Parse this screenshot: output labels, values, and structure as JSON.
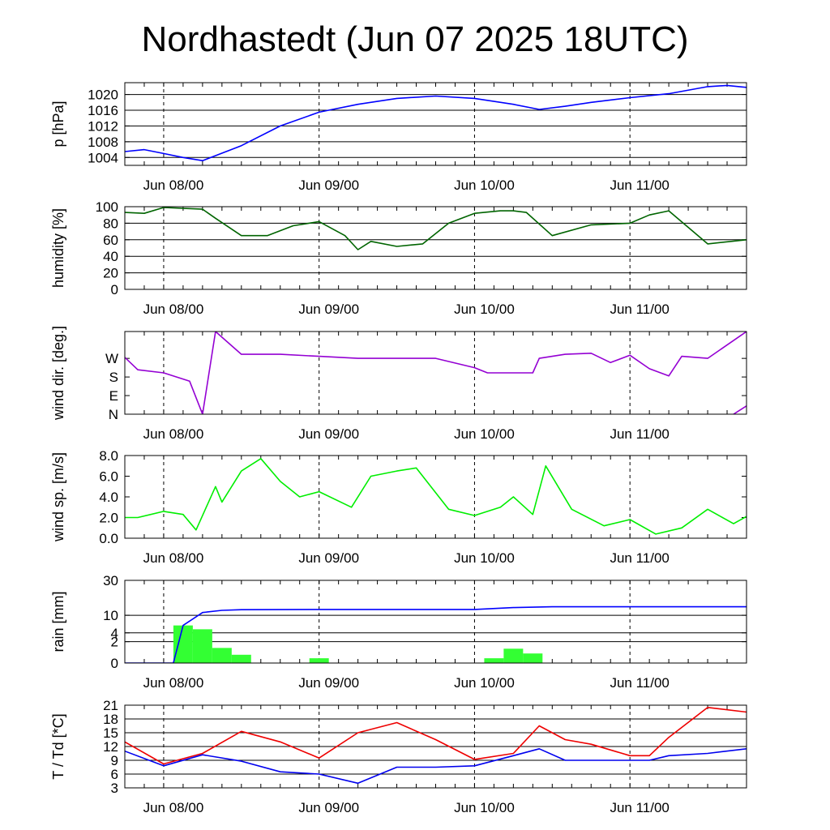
{
  "title": "Nordhastedt (Jun 07 2025 18UTC)",
  "x_axis": {
    "start": "2025-06-07 18:00",
    "end": "2025-06-11 18:00",
    "ticks": [
      {
        "time": "2025-06-08 00:00",
        "label": "Jun 08/00"
      },
      {
        "time": "2025-06-09 00:00",
        "label": "Jun 09/00"
      },
      {
        "time": "2025-06-10 00:00",
        "label": "Jun 10/00"
      },
      {
        "time": "2025-06-11 00:00",
        "label": "Jun 11/00"
      }
    ]
  },
  "chart_data": [
    {
      "id": "pressure",
      "type": "line",
      "ylabel": "p [hPa]",
      "ylim": [
        1002,
        1023
      ],
      "yticks": [
        1004,
        1008,
        1012,
        1016,
        1020
      ],
      "ytick_labels": [
        "1004",
        "1008",
        "1012",
        "1016",
        "1020"
      ],
      "grid": true,
      "series": [
        {
          "color": "#0000ff",
          "x": [
            "2025-06-07 18:00",
            "2025-06-07 21:00",
            "2025-06-08 00:00",
            "2025-06-08 03:00",
            "2025-06-08 06:00",
            "2025-06-08 12:00",
            "2025-06-08 18:00",
            "2025-06-09 00:00",
            "2025-06-09 06:00",
            "2025-06-09 12:00",
            "2025-06-09 18:00",
            "2025-06-10 00:00",
            "2025-06-10 06:00",
            "2025-06-10 10:00",
            "2025-06-10 14:00",
            "2025-06-10 18:00",
            "2025-06-11 00:00",
            "2025-06-11 06:00",
            "2025-06-11 12:00",
            "2025-06-11 15:00",
            "2025-06-11 18:00"
          ],
          "y": [
            1005.5,
            1006.0,
            1005.0,
            1004.0,
            1003.2,
            1007.0,
            1012.0,
            1015.5,
            1017.5,
            1019.0,
            1019.6,
            1019.0,
            1017.5,
            1016.2,
            1017.0,
            1018.0,
            1019.2,
            1020.2,
            1022.0,
            1022.3,
            1021.8
          ]
        }
      ]
    },
    {
      "id": "humidity",
      "type": "line",
      "ylabel": "humidity [%]",
      "ylim": [
        0,
        100
      ],
      "yticks": [
        0,
        20,
        40,
        60,
        80,
        100
      ],
      "ytick_labels": [
        "0",
        "20",
        "40",
        "60",
        "80",
        "100"
      ],
      "grid": true,
      "series": [
        {
          "color": "#006400",
          "x": [
            "2025-06-07 18:00",
            "2025-06-07 21:00",
            "2025-06-08 00:00",
            "2025-06-08 06:00",
            "2025-06-08 08:00",
            "2025-06-08 12:00",
            "2025-06-08 16:00",
            "2025-06-08 20:00",
            "2025-06-09 00:00",
            "2025-06-09 04:00",
            "2025-06-09 06:00",
            "2025-06-09 08:00",
            "2025-06-09 12:00",
            "2025-06-09 16:00",
            "2025-06-09 20:00",
            "2025-06-10 00:00",
            "2025-06-10 04:00",
            "2025-06-10 06:00",
            "2025-06-10 08:00",
            "2025-06-10 12:00",
            "2025-06-10 18:00",
            "2025-06-11 00:00",
            "2025-06-11 03:00",
            "2025-06-11 06:00",
            "2025-06-11 12:00",
            "2025-06-11 18:00"
          ],
          "y": [
            93,
            92,
            99,
            97,
            86,
            65,
            65,
            77,
            82,
            65,
            48,
            58,
            52,
            55,
            80,
            92,
            95,
            95,
            93,
            65,
            78,
            80,
            90,
            95,
            55,
            60
          ]
        }
      ]
    },
    {
      "id": "wind_direction",
      "type": "line",
      "ylabel": "wind dir. [deg.]",
      "ylim": [
        0,
        400
      ],
      "yticks": [
        0,
        90,
        180,
        270
      ],
      "ytick_labels": [
        "N",
        "E",
        "S",
        "W"
      ],
      "grid": false,
      "series": [
        {
          "color": "#9400d3",
          "x": [
            "2025-06-07 18:00",
            "2025-06-07 20:00",
            "2025-06-08 00:00",
            "2025-06-08 04:00",
            "2025-06-08 06:00",
            "2025-06-08 08:00",
            "2025-06-08 12:00",
            "2025-06-08 18:00",
            "2025-06-09 00:00",
            "2025-06-09 06:00",
            "2025-06-09 12:00",
            "2025-06-09 18:00",
            "2025-06-10 00:00",
            "2025-06-10 02:00",
            "2025-06-10 06:00",
            "2025-06-10 09:00",
            "2025-06-10 10:00",
            "2025-06-10 14:00",
            "2025-06-10 18:00",
            "2025-06-10 21:00",
            "2025-06-11 00:00",
            "2025-06-11 03:00",
            "2025-06-11 06:00",
            "2025-06-11 08:00",
            "2025-06-11 12:00",
            "2025-06-11 18:00"
          ],
          "y": [
            275,
            215,
            200,
            160,
            0,
            400,
            290,
            290,
            280,
            270,
            270,
            270,
            225,
            200,
            200,
            200,
            270,
            290,
            295,
            250,
            285,
            220,
            185,
            280,
            270,
            400
          ]
        },
        {
          "color": "#9400d3",
          "x": [
            "2025-06-11 16:00",
            "2025-06-11 18:00"
          ],
          "y": [
            0,
            40
          ]
        }
      ]
    },
    {
      "id": "wind_speed",
      "type": "line",
      "ylabel": "wind sp. [m/s]",
      "ylim": [
        0,
        8.0
      ],
      "yticks": [
        0,
        2,
        4,
        6,
        8
      ],
      "ytick_labels": [
        "0.0",
        "2.0",
        "4.0",
        "6.0",
        "8.0"
      ],
      "grid": false,
      "series": [
        {
          "color": "#00ee00",
          "x": [
            "2025-06-07 18:00",
            "2025-06-07 20:00",
            "2025-06-08 00:00",
            "2025-06-08 03:00",
            "2025-06-08 05:00",
            "2025-06-08 08:00",
            "2025-06-08 09:00",
            "2025-06-08 12:00",
            "2025-06-08 15:00",
            "2025-06-08 18:00",
            "2025-06-08 21:00",
            "2025-06-09 00:00",
            "2025-06-09 05:00",
            "2025-06-09 08:00",
            "2025-06-09 12:00",
            "2025-06-09 15:00",
            "2025-06-09 20:00",
            "2025-06-10 00:00",
            "2025-06-10 04:00",
            "2025-06-10 06:00",
            "2025-06-10 09:00",
            "2025-06-10 11:00",
            "2025-06-10 15:00",
            "2025-06-10 20:00",
            "2025-06-11 00:00",
            "2025-06-11 04:00",
            "2025-06-11 08:00",
            "2025-06-11 12:00",
            "2025-06-11 16:00",
            "2025-06-11 18:00"
          ],
          "y": [
            2.0,
            2.0,
            2.6,
            2.3,
            0.8,
            5.0,
            3.5,
            6.5,
            7.7,
            5.5,
            4.0,
            4.5,
            3.0,
            6.0,
            6.5,
            6.8,
            2.8,
            2.2,
            3.0,
            4.0,
            2.3,
            7.0,
            2.8,
            1.2,
            1.8,
            0.4,
            1.0,
            2.8,
            1.4,
            2.1
          ]
        }
      ]
    },
    {
      "id": "rain",
      "type": "bar",
      "ylabel": "rain [mm]",
      "scale": "sqrt",
      "ylim": [
        0,
        30
      ],
      "yticks": [
        0,
        2,
        4,
        10,
        30
      ],
      "ytick_labels": [
        "0",
        "2",
        "4",
        "10",
        "30"
      ],
      "grid": true,
      "bars": {
        "color": "#33ff33",
        "width_hours": 3,
        "x": [
          "2025-06-08 03:00",
          "2025-06-08 06:00",
          "2025-06-08 09:00",
          "2025-06-08 12:00",
          "2025-06-09 00:00",
          "2025-06-10 03:00",
          "2025-06-10 06:00",
          "2025-06-10 09:00"
        ],
        "y": [
          6.2,
          5.0,
          1.0,
          0.3,
          0.1,
          0.1,
          0.9,
          0.4
        ]
      },
      "series": [
        {
          "color": "#0000ff",
          "x": [
            "2025-06-07 18:00",
            "2025-06-08 01:30",
            "2025-06-08 03:00",
            "2025-06-08 06:00",
            "2025-06-08 09:00",
            "2025-06-08 12:00",
            "2025-06-09 00:00",
            "2025-06-10 00:00",
            "2025-06-10 06:00",
            "2025-06-10 12:00",
            "2025-06-11 18:00"
          ],
          "y": [
            0,
            0,
            6.2,
            11.2,
            12.2,
            12.5,
            12.6,
            12.6,
            13.5,
            13.9,
            13.9
          ]
        }
      ]
    },
    {
      "id": "temperature",
      "type": "line",
      "ylabel": "T / Td [*C]",
      "ylim": [
        3,
        21
      ],
      "yticks": [
        3,
        6,
        9,
        12,
        15,
        18,
        21
      ],
      "ytick_labels": [
        "3",
        "6",
        "9",
        "12",
        "15",
        "18",
        "21"
      ],
      "grid": true,
      "series": [
        {
          "color": "#ee0000",
          "x": [
            "2025-06-07 18:00",
            "2025-06-08 00:00",
            "2025-06-08 06:00",
            "2025-06-08 12:00",
            "2025-06-08 18:00",
            "2025-06-09 00:00",
            "2025-06-09 06:00",
            "2025-06-09 12:00",
            "2025-06-09 18:00",
            "2025-06-10 00:00",
            "2025-06-10 06:00",
            "2025-06-10 10:00",
            "2025-06-10 14:00",
            "2025-06-10 18:00",
            "2025-06-11 00:00",
            "2025-06-11 03:00",
            "2025-06-11 06:00",
            "2025-06-11 12:00",
            "2025-06-11 18:00"
          ],
          "y": [
            13,
            8.2,
            10.5,
            15.3,
            13,
            9.5,
            15,
            17.2,
            13.5,
            9.2,
            10.5,
            16.5,
            13.5,
            12.5,
            10,
            10,
            14,
            20.5,
            19.5
          ]
        },
        {
          "color": "#0000ee",
          "x": [
            "2025-06-07 18:00",
            "2025-06-08 00:00",
            "2025-06-08 06:00",
            "2025-06-08 12:00",
            "2025-06-08 18:00",
            "2025-06-09 00:00",
            "2025-06-09 06:00",
            "2025-06-09 12:00",
            "2025-06-09 18:00",
            "2025-06-10 00:00",
            "2025-06-10 06:00",
            "2025-06-10 10:00",
            "2025-06-10 14:00",
            "2025-06-10 18:00",
            "2025-06-11 00:00",
            "2025-06-11 03:00",
            "2025-06-11 06:00",
            "2025-06-11 12:00",
            "2025-06-11 18:00"
          ],
          "y": [
            11,
            7.8,
            10.2,
            8.8,
            6.5,
            6,
            4,
            7.5,
            7.5,
            7.8,
            10,
            11.5,
            9,
            9,
            9,
            9,
            10,
            10.5,
            11.5
          ]
        }
      ]
    }
  ]
}
